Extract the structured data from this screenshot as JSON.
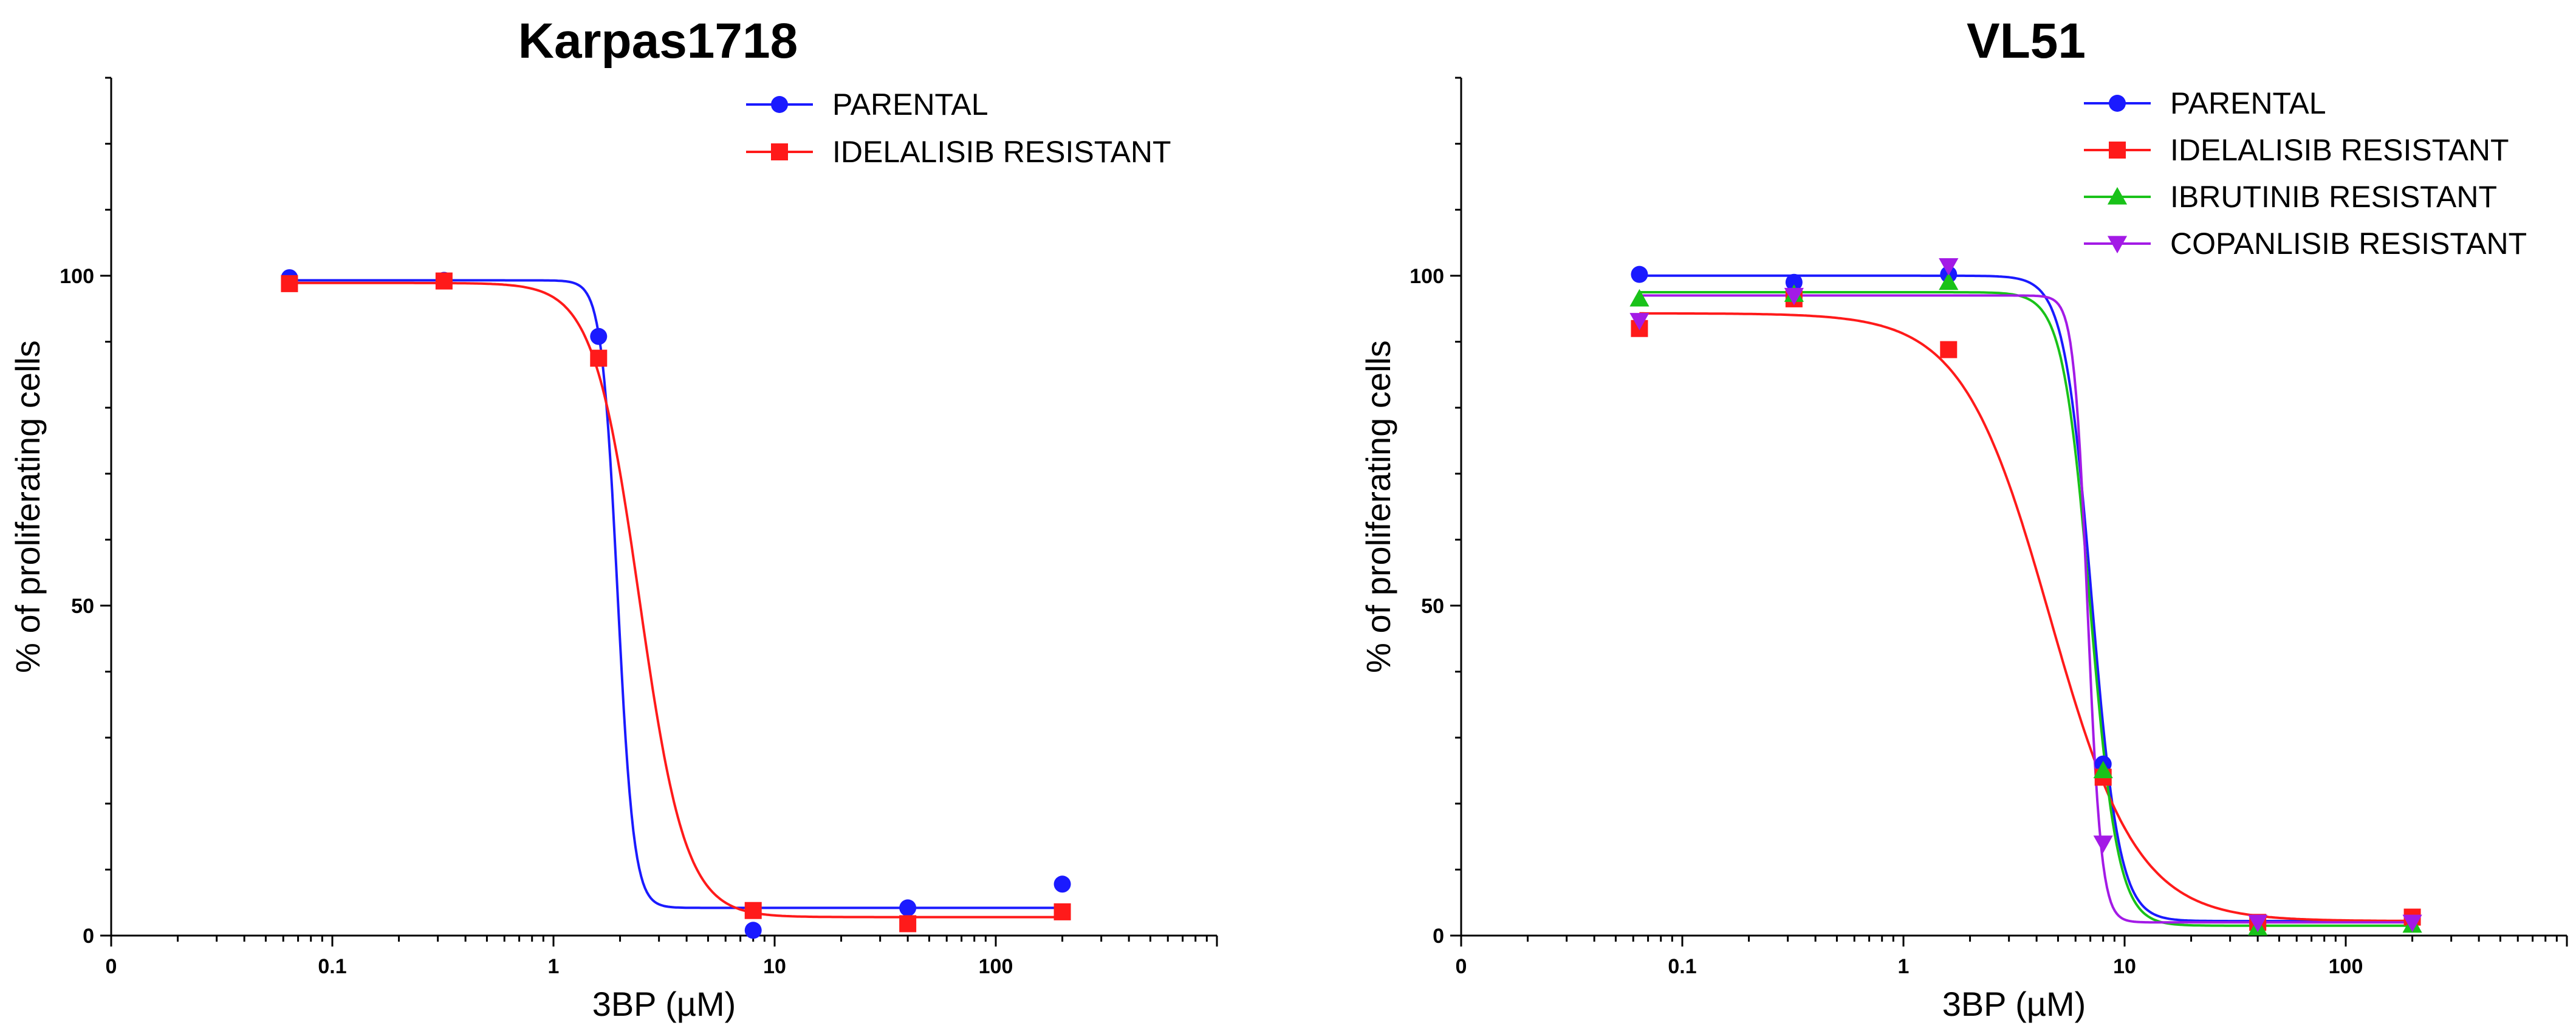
{
  "chart_data": [
    {
      "type": "line",
      "title": "Karpas1718",
      "xlabel": "3BP (µM)",
      "ylabel": "% of proliferating cells",
      "xscale": "log",
      "xlim": [
        0.01,
        1000
      ],
      "ylim": [
        0,
        130
      ],
      "x_ticks": [
        {
          "value": 0.01,
          "label": "0"
        },
        {
          "value": 0.1,
          "label": "0.1"
        },
        {
          "value": 1,
          "label": "1"
        },
        {
          "value": 10,
          "label": "10"
        },
        {
          "value": 100,
          "label": "100"
        }
      ],
      "y_ticks": [
        {
          "value": 0,
          "label": "0"
        },
        {
          "value": 50,
          "label": "50"
        },
        {
          "value": 100,
          "label": "100"
        }
      ],
      "legend_position": "top-right",
      "series": [
        {
          "name": "PARENTAL",
          "color": "#1a1aff",
          "marker": "circle",
          "x": [
            0.064,
            0.32,
            1.6,
            8,
            40,
            200
          ],
          "values": [
            99.7,
            99.3,
            90.8,
            0.8,
            4.2,
            7.8
          ],
          "fit": {
            "top": 99.3,
            "bottom": 4.2,
            "ec50": 1.95,
            "hill": 12
          }
        },
        {
          "name": "IDELALISIB RESISTANT",
          "color": "#ff1a1a",
          "marker": "square",
          "x": [
            0.064,
            0.32,
            1.6,
            8,
            40,
            200
          ],
          "values": [
            98.8,
            99.2,
            87.5,
            3.8,
            1.8,
            3.6
          ],
          "fit": {
            "top": 98.9,
            "bottom": 2.8,
            "ec50": 2.45,
            "hill": 4.2
          }
        }
      ]
    },
    {
      "type": "line",
      "title": "VL51",
      "xlabel": "3BP (µM)",
      "ylabel": "% of proliferating cells",
      "xscale": "log",
      "xlim": [
        0.01,
        1000
      ],
      "ylim": [
        0,
        130
      ],
      "x_ticks": [
        {
          "value": 0.01,
          "label": "0"
        },
        {
          "value": 0.1,
          "label": "0.1"
        },
        {
          "value": 1,
          "label": "1"
        },
        {
          "value": 10,
          "label": "10"
        },
        {
          "value": 100,
          "label": "100"
        }
      ],
      "y_ticks": [
        {
          "value": 0,
          "label": "0"
        },
        {
          "value": 50,
          "label": "50"
        },
        {
          "value": 100,
          "label": "100"
        }
      ],
      "legend_position": "top-right",
      "series": [
        {
          "name": "PARENTAL",
          "color": "#1a1aff",
          "marker": "circle",
          "x": [
            0.064,
            0.32,
            1.6,
            8,
            40,
            200
          ],
          "values": [
            100.2,
            99.0,
            100.2,
            26.0,
            1.8,
            2.6
          ],
          "fit": {
            "top": 100.0,
            "bottom": 2.2,
            "ec50": 7.1,
            "hill": 7
          }
        },
        {
          "name": "IDELALISIB RESISTANT",
          "color": "#ff1a1a",
          "marker": "square",
          "x": [
            0.064,
            0.32,
            1.6,
            8,
            40,
            200
          ],
          "values": [
            92.0,
            96.5,
            88.8,
            24.0,
            2.0,
            2.8
          ],
          "fit": {
            "top": 94.3,
            "bottom": 2.2,
            "ec50": 4.6,
            "hill": 2.2
          }
        },
        {
          "name": "IBRUTINIB RESISTANT",
          "color": "#19c219",
          "marker": "triangle-up",
          "x": [
            0.064,
            0.32,
            1.6,
            8,
            40,
            200
          ],
          "values": [
            96.5,
            97.2,
            99.0,
            25.0,
            1.2,
            1.6
          ],
          "fit": {
            "top": 97.5,
            "bottom": 1.5,
            "ec50": 7.0,
            "hill": 7
          }
        },
        {
          "name": "COPANLISIB RESISTANT",
          "color": "#a31ae6",
          "marker": "triangle-down",
          "x": [
            0.064,
            0.32,
            1.6,
            8,
            40,
            200
          ],
          "values": [
            93.2,
            97.0,
            101.5,
            14.0,
            2.0,
            2.0
          ],
          "fit": {
            "top": 97.0,
            "bottom": 2.0,
            "ec50": 6.8,
            "hill": 14
          }
        }
      ]
    }
  ]
}
